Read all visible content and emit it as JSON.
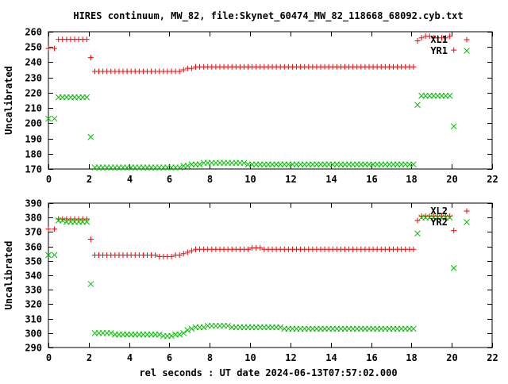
{
  "figure": {
    "title": "HIRES continuum, MW_82, file:Skynet_60474_MW_82_118668_68092.cyb.txt",
    "xlabel": "rel seconds : UT date 2024-06-13T07:57:02.000"
  },
  "colors": {
    "xl": "#ff0000",
    "yr": "#00c000",
    "axis": "#000000",
    "grid": "#b0b0b0"
  },
  "chart_data": [
    {
      "type": "scatter",
      "title": "HIRES continuum, MW_82, file:Skynet_60474_MW_82_118668_68092.cyb.txt",
      "xlabel": "",
      "ylabel": "Uncalibrated",
      "xlim": [
        0,
        22
      ],
      "ylim": [
        170,
        260
      ],
      "xticks": [
        0,
        2,
        4,
        6,
        8,
        10,
        12,
        14,
        16,
        18,
        20,
        22
      ],
      "yticks": [
        170,
        180,
        190,
        200,
        210,
        220,
        230,
        240,
        250,
        260
      ],
      "grid": true,
      "legend": "top-right",
      "series": [
        {
          "name": "XL1",
          "marker": "plus",
          "x": [
            0.0,
            0.3,
            0.5,
            0.7,
            0.9,
            1.1,
            1.3,
            1.5,
            1.7,
            1.9,
            2.1,
            2.3,
            2.5,
            2.7,
            2.9,
            3.1,
            3.3,
            3.5,
            3.7,
            3.9,
            4.1,
            4.3,
            4.5,
            4.7,
            4.9,
            5.1,
            5.3,
            5.5,
            5.7,
            5.9,
            6.1,
            6.3,
            6.5,
            6.7,
            6.9,
            7.1,
            7.3,
            7.5,
            7.7,
            7.9,
            8.1,
            8.3,
            8.5,
            8.7,
            8.9,
            9.1,
            9.3,
            9.5,
            9.7,
            9.9,
            10.1,
            10.3,
            10.5,
            10.7,
            10.9,
            11.1,
            11.3,
            11.5,
            11.7,
            11.9,
            12.1,
            12.3,
            12.5,
            12.7,
            12.9,
            13.1,
            13.3,
            13.5,
            13.7,
            13.9,
            14.1,
            14.3,
            14.5,
            14.7,
            14.9,
            15.1,
            15.3,
            15.5,
            15.7,
            15.9,
            16.1,
            16.3,
            16.5,
            16.7,
            16.9,
            17.1,
            17.3,
            17.5,
            17.7,
            17.9,
            18.1,
            18.3,
            18.5,
            18.7,
            18.9,
            19.1,
            19.3,
            19.5,
            19.7,
            19.9,
            20.1
          ],
          "y": [
            249,
            249,
            255,
            255,
            255,
            255,
            255,
            255,
            255,
            255,
            243,
            234,
            234,
            234,
            234,
            234,
            234,
            234,
            234,
            234,
            234,
            234,
            234,
            234,
            234,
            234,
            234,
            234,
            234,
            234,
            234,
            234,
            234,
            235,
            236,
            236,
            237,
            237,
            237,
            237,
            237,
            237,
            237,
            237,
            237,
            237,
            237,
            237,
            237,
            237,
            237,
            237,
            237,
            237,
            237,
            237,
            237,
            237,
            237,
            237,
            237,
            237,
            237,
            237,
            237,
            237,
            237,
            237,
            237,
            237,
            237,
            237,
            237,
            237,
            237,
            237,
            237,
            237,
            237,
            237,
            237,
            237,
            237,
            237,
            237,
            237,
            237,
            237,
            237,
            237,
            237,
            254,
            256,
            257,
            257,
            256,
            256,
            256,
            256,
            257,
            248
          ]
        },
        {
          "name": "YR1",
          "marker": "cross",
          "x": [
            0.0,
            0.3,
            0.5,
            0.7,
            0.9,
            1.1,
            1.3,
            1.5,
            1.7,
            1.9,
            2.1,
            2.3,
            2.5,
            2.7,
            2.9,
            3.1,
            3.3,
            3.5,
            3.7,
            3.9,
            4.1,
            4.3,
            4.5,
            4.7,
            4.9,
            5.1,
            5.3,
            5.5,
            5.7,
            5.9,
            6.1,
            6.3,
            6.5,
            6.7,
            6.9,
            7.1,
            7.3,
            7.5,
            7.7,
            7.9,
            8.1,
            8.3,
            8.5,
            8.7,
            8.9,
            9.1,
            9.3,
            9.5,
            9.7,
            9.9,
            10.1,
            10.3,
            10.5,
            10.7,
            10.9,
            11.1,
            11.3,
            11.5,
            11.7,
            11.9,
            12.1,
            12.3,
            12.5,
            12.7,
            12.9,
            13.1,
            13.3,
            13.5,
            13.7,
            13.9,
            14.1,
            14.3,
            14.5,
            14.7,
            14.9,
            15.1,
            15.3,
            15.5,
            15.7,
            15.9,
            16.1,
            16.3,
            16.5,
            16.7,
            16.9,
            17.1,
            17.3,
            17.5,
            17.7,
            17.9,
            18.1,
            18.3,
            18.5,
            18.7,
            18.9,
            19.1,
            19.3,
            19.5,
            19.7,
            19.9,
            20.1
          ],
          "y": [
            203,
            203,
            217,
            217,
            217,
            217,
            217,
            217,
            217,
            217,
            191,
            171,
            171,
            171,
            171,
            171,
            171,
            171,
            171,
            171,
            171,
            171,
            171,
            171,
            171,
            171,
            171,
            171,
            171,
            171,
            171,
            171,
            171,
            172,
            172,
            173,
            173,
            173,
            174,
            174,
            174,
            174,
            174,
            174,
            174,
            174,
            174,
            174,
            174,
            173,
            173,
            173,
            173,
            173,
            173,
            173,
            173,
            173,
            173,
            173,
            173,
            173,
            173,
            173,
            173,
            173,
            173,
            173,
            173,
            173,
            173,
            173,
            173,
            173,
            173,
            173,
            173,
            173,
            173,
            173,
            173,
            173,
            173,
            173,
            173,
            173,
            173,
            173,
            173,
            173,
            173,
            212,
            218,
            218,
            218,
            218,
            218,
            218,
            218,
            218,
            198
          ]
        }
      ]
    },
    {
      "type": "scatter",
      "title": "",
      "xlabel": "rel seconds : UT date 2024-06-13T07:57:02.000",
      "ylabel": "Uncalibrated",
      "xlim": [
        0,
        22
      ],
      "ylim": [
        290,
        390
      ],
      "xticks": [
        0,
        2,
        4,
        6,
        8,
        10,
        12,
        14,
        16,
        18,
        20,
        22
      ],
      "yticks": [
        290,
        300,
        310,
        320,
        330,
        340,
        350,
        360,
        370,
        380,
        390
      ],
      "grid": true,
      "legend": "top-right",
      "series": [
        {
          "name": "XL2",
          "marker": "plus",
          "x": [
            0.0,
            0.3,
            0.5,
            0.7,
            0.9,
            1.1,
            1.3,
            1.5,
            1.7,
            1.9,
            2.1,
            2.3,
            2.5,
            2.7,
            2.9,
            3.1,
            3.3,
            3.5,
            3.7,
            3.9,
            4.1,
            4.3,
            4.5,
            4.7,
            4.9,
            5.1,
            5.3,
            5.5,
            5.7,
            5.9,
            6.1,
            6.3,
            6.5,
            6.7,
            6.9,
            7.1,
            7.3,
            7.5,
            7.7,
            7.9,
            8.1,
            8.3,
            8.5,
            8.7,
            8.9,
            9.1,
            9.3,
            9.5,
            9.7,
            9.9,
            10.1,
            10.3,
            10.5,
            10.7,
            10.9,
            11.1,
            11.3,
            11.5,
            11.7,
            11.9,
            12.1,
            12.3,
            12.5,
            12.7,
            12.9,
            13.1,
            13.3,
            13.5,
            13.7,
            13.9,
            14.1,
            14.3,
            14.5,
            14.7,
            14.9,
            15.1,
            15.3,
            15.5,
            15.7,
            15.9,
            16.1,
            16.3,
            16.5,
            16.7,
            16.9,
            17.1,
            17.3,
            17.5,
            17.7,
            17.9,
            18.1,
            18.3,
            18.5,
            18.7,
            18.9,
            19.1,
            19.3,
            19.5,
            19.7,
            19.9,
            20.1
          ],
          "y": [
            372,
            372,
            379,
            379,
            379,
            379,
            379,
            379,
            379,
            379,
            365,
            354,
            354,
            354,
            354,
            354,
            354,
            354,
            354,
            354,
            354,
            354,
            354,
            354,
            354,
            354,
            354,
            353,
            353,
            353,
            353,
            354,
            354,
            355,
            356,
            357,
            358,
            358,
            358,
            358,
            358,
            358,
            358,
            358,
            358,
            358,
            358,
            358,
            358,
            358,
            359,
            359,
            359,
            358,
            358,
            358,
            358,
            358,
            358,
            358,
            358,
            358,
            358,
            358,
            358,
            358,
            358,
            358,
            358,
            358,
            358,
            358,
            358,
            358,
            358,
            358,
            358,
            358,
            358,
            358,
            358,
            358,
            358,
            358,
            358,
            358,
            358,
            358,
            358,
            358,
            358,
            378,
            381,
            381,
            381,
            381,
            381,
            381,
            381,
            381,
            371
          ]
        },
        {
          "name": "YR2",
          "marker": "cross",
          "x": [
            0.0,
            0.3,
            0.5,
            0.7,
            0.9,
            1.1,
            1.3,
            1.5,
            1.7,
            1.9,
            2.1,
            2.3,
            2.5,
            2.7,
            2.9,
            3.1,
            3.3,
            3.5,
            3.7,
            3.9,
            4.1,
            4.3,
            4.5,
            4.7,
            4.9,
            5.1,
            5.3,
            5.5,
            5.7,
            5.9,
            6.1,
            6.3,
            6.5,
            6.7,
            6.9,
            7.1,
            7.3,
            7.5,
            7.7,
            7.9,
            8.1,
            8.3,
            8.5,
            8.7,
            8.9,
            9.1,
            9.3,
            9.5,
            9.7,
            9.9,
            10.1,
            10.3,
            10.5,
            10.7,
            10.9,
            11.1,
            11.3,
            11.5,
            11.7,
            11.9,
            12.1,
            12.3,
            12.5,
            12.7,
            12.9,
            13.1,
            13.3,
            13.5,
            13.7,
            13.9,
            14.1,
            14.3,
            14.5,
            14.7,
            14.9,
            15.1,
            15.3,
            15.5,
            15.7,
            15.9,
            16.1,
            16.3,
            16.5,
            16.7,
            16.9,
            17.1,
            17.3,
            17.5,
            17.7,
            17.9,
            18.1,
            18.3,
            18.5,
            18.7,
            18.9,
            19.1,
            19.3,
            19.5,
            19.7,
            19.9,
            20.1
          ],
          "y": [
            354,
            354,
            378,
            378,
            377,
            377,
            377,
            377,
            377,
            377,
            334,
            300,
            300,
            300,
            300,
            300,
            299,
            299,
            299,
            299,
            299,
            299,
            299,
            299,
            299,
            299,
            299,
            299,
            298,
            298,
            298,
            299,
            299,
            300,
            302,
            303,
            304,
            304,
            304,
            305,
            305,
            305,
            305,
            305,
            305,
            304,
            304,
            304,
            304,
            304,
            304,
            304,
            304,
            304,
            304,
            304,
            304,
            304,
            303,
            303,
            303,
            303,
            303,
            303,
            303,
            303,
            303,
            303,
            303,
            303,
            303,
            303,
            303,
            303,
            303,
            303,
            303,
            303,
            303,
            303,
            303,
            303,
            303,
            303,
            303,
            303,
            303,
            303,
            303,
            303,
            303,
            369,
            380,
            380,
            380,
            380,
            380,
            380,
            380,
            380,
            345
          ]
        }
      ]
    }
  ]
}
